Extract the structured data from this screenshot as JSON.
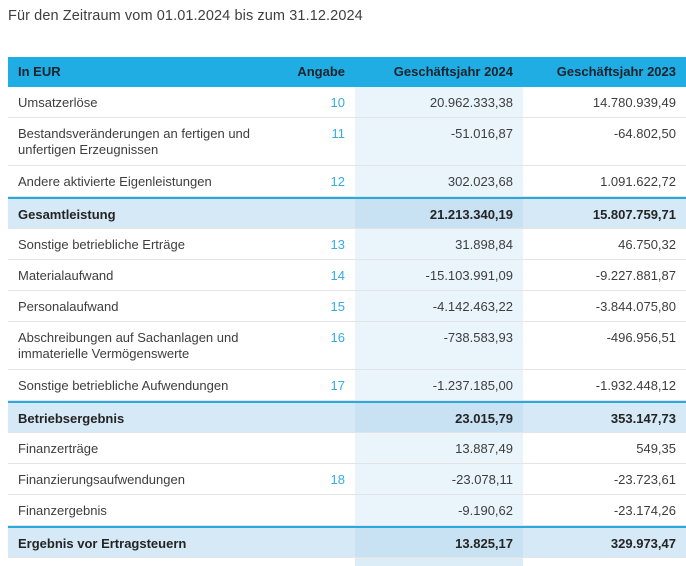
{
  "page": {
    "title": "Für den Zeitraum vom 01.01.2024 bis zum 31.12.2024"
  },
  "table": {
    "columns": {
      "label": "In EUR",
      "angabe": "Angabe",
      "fy2024": "Geschäftsjahr 2024",
      "fy2023": "Geschäftsjahr 2023"
    },
    "rows": [
      {
        "type": "item",
        "label": "Umsatzerlöse",
        "angabe": "10",
        "fy2024": "20.962.333,38",
        "fy2023": "14.780.939,49"
      },
      {
        "type": "item",
        "twoline": true,
        "label": "Bestandsveränderungen an fertigen und unfertigen Erzeugnissen",
        "angabe": "11",
        "fy2024": "-51.016,87",
        "fy2023": "-64.802,50"
      },
      {
        "type": "item",
        "label": "Andere aktivierte Eigenleistungen",
        "angabe": "12",
        "fy2024": "302.023,68",
        "fy2023": "1.091.622,72"
      },
      {
        "type": "subtotal",
        "label": "Gesamtleistung",
        "angabe": "",
        "fy2024": "21.213.340,19",
        "fy2023": "15.807.759,71"
      },
      {
        "type": "item",
        "label": "Sonstige betriebliche Erträge",
        "angabe": "13",
        "fy2024": "31.898,84",
        "fy2023": "46.750,32"
      },
      {
        "type": "item",
        "label": "Materialaufwand",
        "angabe": "14",
        "fy2024": "-15.103.991,09",
        "fy2023": "-9.227.881,87"
      },
      {
        "type": "item",
        "label": "Personalaufwand",
        "angabe": "15",
        "fy2024": "-4.142.463,22",
        "fy2023": "-3.844.075,80"
      },
      {
        "type": "item",
        "twoline": true,
        "label": "Abschreibungen auf Sachanlagen und immaterielle Vermögenswerte",
        "angabe": "16",
        "fy2024": "-738.583,93",
        "fy2023": "-496.956,51"
      },
      {
        "type": "item",
        "label": "Sonstige betriebliche Aufwendungen",
        "angabe": "17",
        "fy2024": "-1.237.185,00",
        "fy2023": "-1.932.448,12"
      },
      {
        "type": "subtotal",
        "label": "Betriebsergebnis",
        "angabe": "",
        "fy2024": "23.015,79",
        "fy2023": "353.147,73"
      },
      {
        "type": "item",
        "label": "Finanzerträge",
        "angabe": "",
        "fy2024": "13.887,49",
        "fy2023": "549,35"
      },
      {
        "type": "item",
        "label": "Finanzierungsaufwendungen",
        "angabe": "18",
        "fy2024": "-23.078,11",
        "fy2023": "-23.723,61"
      },
      {
        "type": "item",
        "label": "Finanzergebnis",
        "angabe": "",
        "fy2024": "-9.190,62",
        "fy2023": "-23.174,26"
      },
      {
        "type": "subtotal",
        "label": "Ergebnis vor Ertragsteuern",
        "angabe": "",
        "fy2024": "13.825,17",
        "fy2023": "329.973,47"
      }
    ],
    "colors": {
      "accent": "#29A9E0",
      "header_bg": "#1FADE4",
      "header_text": "#19242E",
      "column_highlight_bg": "#EAF4FB",
      "subtotal_row_bg": "#D6E9F7",
      "subtotal_column_bg": "#C8E1F3",
      "angabe_link": "#33ADE3",
      "row_border": "#E4E4E4",
      "body_text": "#3E3E3E"
    }
  }
}
